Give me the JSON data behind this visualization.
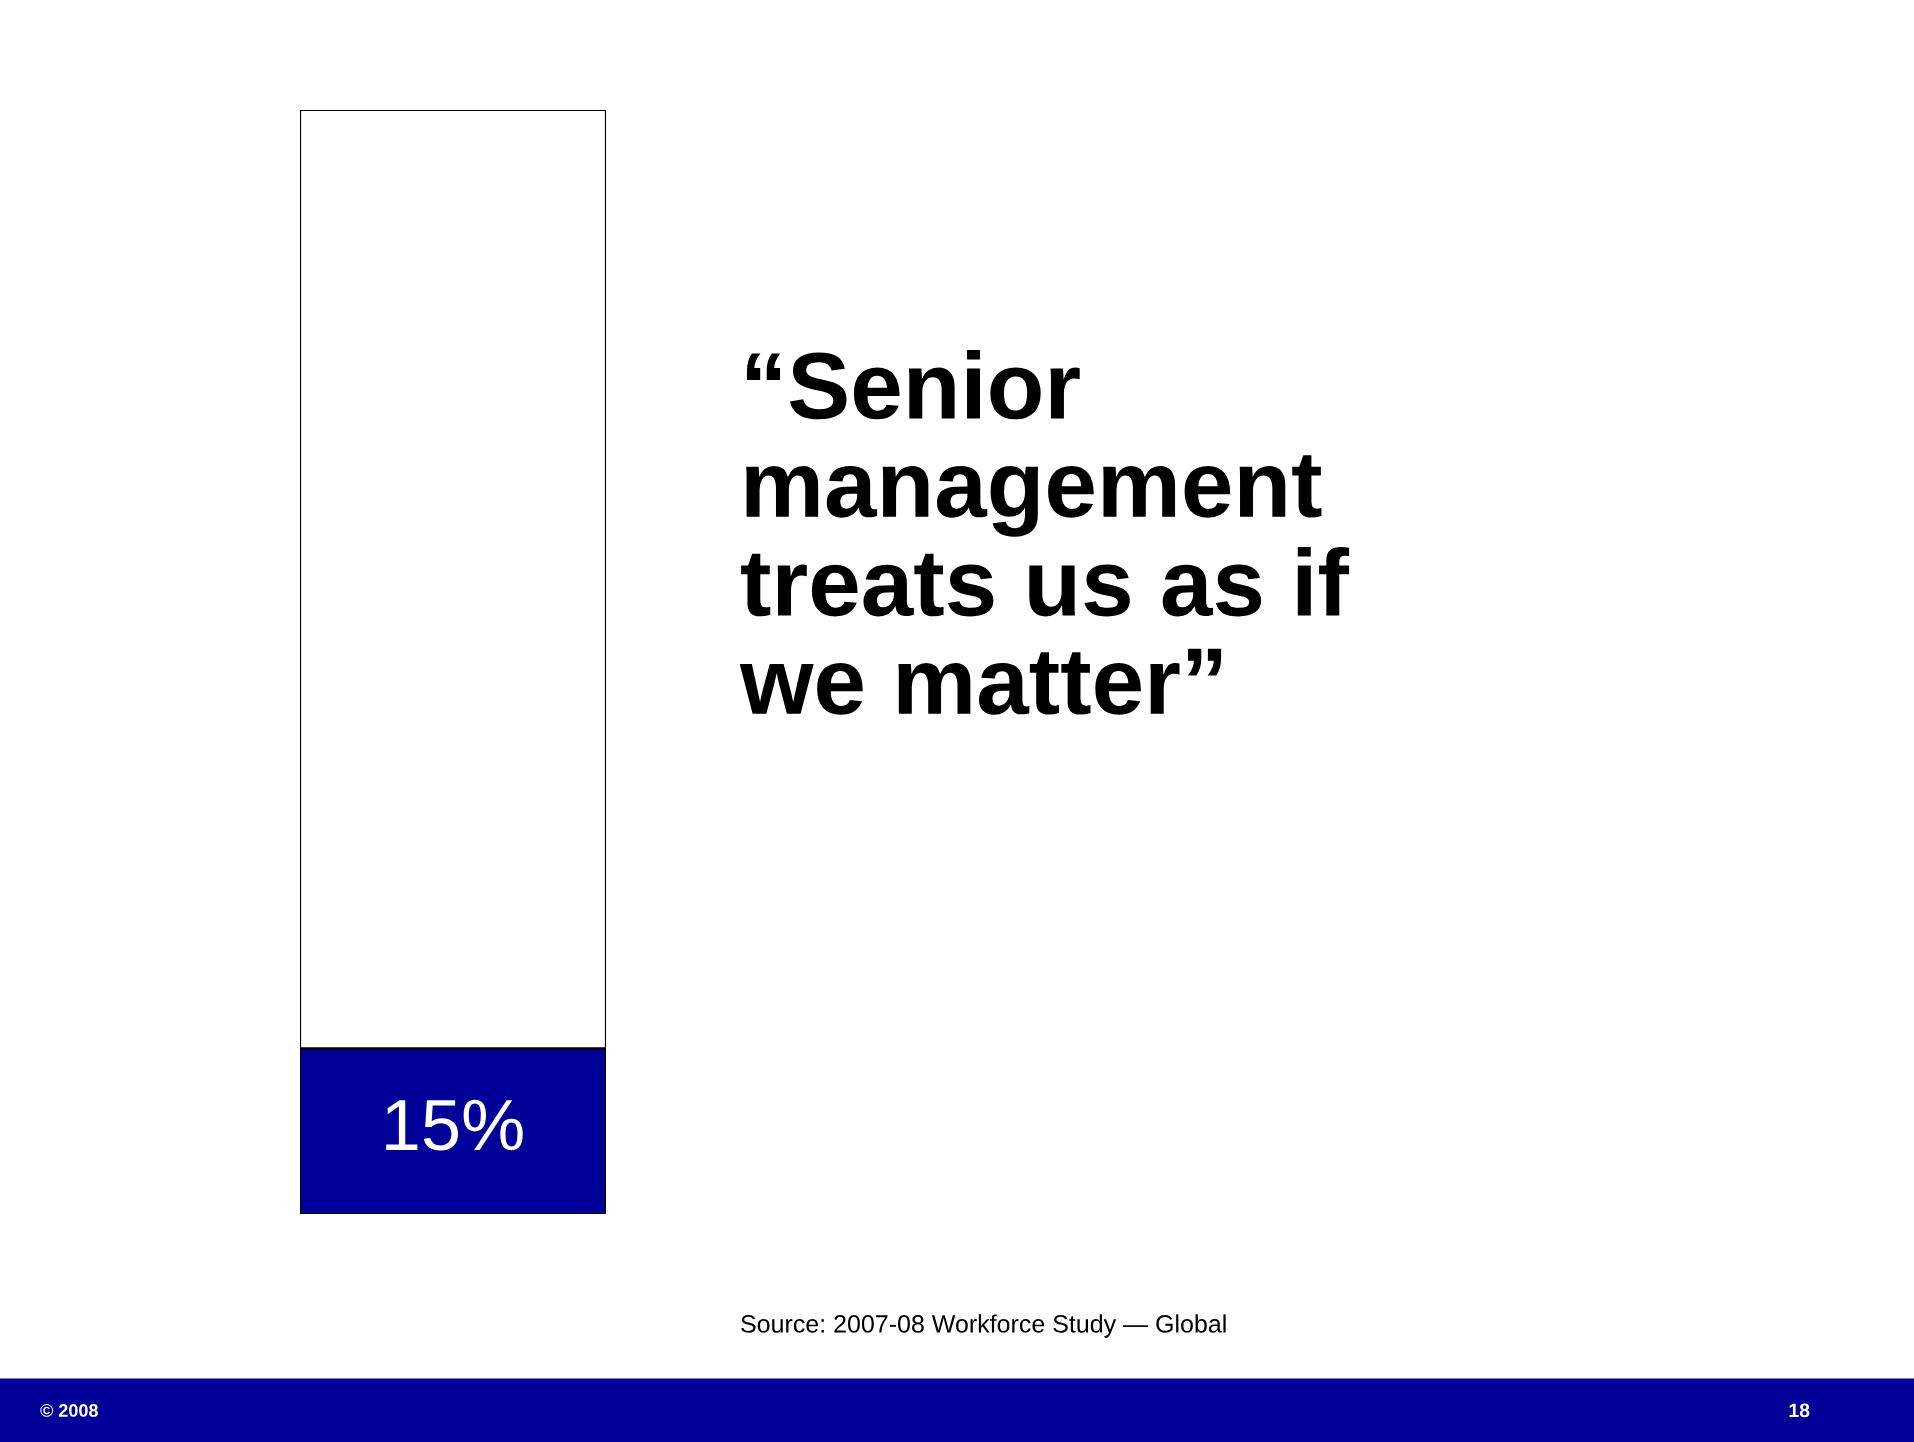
{
  "chart_data": {
    "type": "bar",
    "stacked": true,
    "title": "“Senior\nmanagement\ntreats us as if\nwe matter”",
    "categories": [
      null
    ],
    "series": [
      {
        "color": "#000099",
        "values": [
          15
        ],
        "value_labels": [
          "15%"
        ]
      },
      {
        "color": "#ffffff",
        "values": [
          85
        ]
      }
    ],
    "annotations": [
      "Source: 2007-08 Workforce Study — Global",
      "© 2008",
      "18"
    ]
  }
}
